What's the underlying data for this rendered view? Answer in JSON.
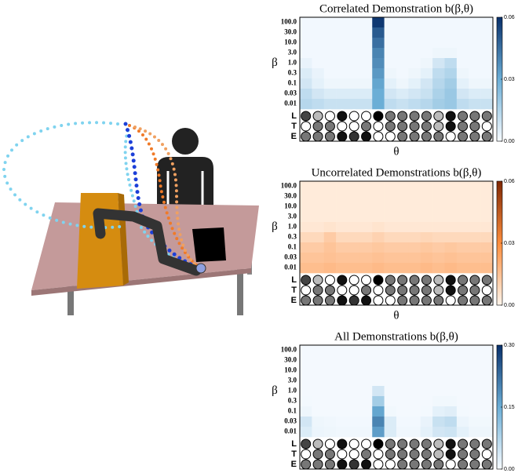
{
  "chart_data": [
    {
      "type": "heatmap",
      "title": "Correlated Demonstration b(β,θ)",
      "y_label": "β",
      "x_label": "θ",
      "y_categories": [
        "100.0",
        "30.0",
        "10.0",
        "3.0",
        "1.0",
        "0.3",
        "0.1",
        "0.03",
        "0.01"
      ],
      "values": [
        [
          0.001,
          0.001,
          0.001,
          0.001,
          0.001,
          0.001,
          0.058,
          0.001,
          0.001,
          0.001,
          0.001,
          0.001,
          0.001,
          0.001,
          0.001,
          0.001
        ],
        [
          0.001,
          0.001,
          0.001,
          0.001,
          0.001,
          0.001,
          0.05,
          0.001,
          0.001,
          0.001,
          0.001,
          0.001,
          0.001,
          0.001,
          0.001,
          0.001
        ],
        [
          0.001,
          0.001,
          0.001,
          0.001,
          0.001,
          0.001,
          0.045,
          0.001,
          0.001,
          0.001,
          0.001,
          0.001,
          0.001,
          0.001,
          0.001,
          0.001
        ],
        [
          0.001,
          0.001,
          0.001,
          0.001,
          0.001,
          0.001,
          0.04,
          0.001,
          0.001,
          0.001,
          0.001,
          0.002,
          0.002,
          0.001,
          0.001,
          0.001
        ],
        [
          0.003,
          0.001,
          0.001,
          0.001,
          0.001,
          0.001,
          0.038,
          0.001,
          0.001,
          0.001,
          0.002,
          0.008,
          0.012,
          0.001,
          0.001,
          0.001
        ],
        [
          0.006,
          0.003,
          0.001,
          0.001,
          0.001,
          0.001,
          0.035,
          0.002,
          0.001,
          0.002,
          0.004,
          0.012,
          0.015,
          0.002,
          0.001,
          0.001
        ],
        [
          0.008,
          0.004,
          0.002,
          0.002,
          0.002,
          0.002,
          0.032,
          0.004,
          0.002,
          0.004,
          0.008,
          0.014,
          0.018,
          0.004,
          0.002,
          0.002
        ],
        [
          0.012,
          0.008,
          0.006,
          0.006,
          0.006,
          0.006,
          0.03,
          0.008,
          0.006,
          0.008,
          0.01,
          0.016,
          0.02,
          0.008,
          0.006,
          0.006
        ],
        [
          0.014,
          0.012,
          0.01,
          0.01,
          0.01,
          0.01,
          0.03,
          0.012,
          0.01,
          0.012,
          0.014,
          0.018,
          0.02,
          0.012,
          0.01,
          0.01
        ]
      ],
      "colormap": [
        "#f7fbff",
        "#6baed6",
        "#08306b"
      ],
      "clim": [
        0,
        0.06
      ],
      "cticks": [
        {
          "value": 0,
          "label": "0.00"
        },
        {
          "value": 0.03,
          "label": "0.03"
        },
        {
          "value": 0.06,
          "label": "0.06"
        }
      ]
    },
    {
      "type": "heatmap",
      "title": "Uncorrelated Demonstrations b(β,θ)",
      "y_label": "β",
      "x_label": "θ",
      "y_categories": [
        "100.0",
        "30.0",
        "10.0",
        "3.0",
        "1.0",
        "0.3",
        "0.1",
        "0.03",
        "0.01"
      ],
      "values": [
        [
          0.003,
          0.003,
          0.003,
          0.003,
          0.003,
          0.003,
          0.003,
          0.003,
          0.003,
          0.003,
          0.003,
          0.003,
          0.003,
          0.003,
          0.003,
          0.003
        ],
        [
          0.003,
          0.003,
          0.003,
          0.003,
          0.003,
          0.003,
          0.003,
          0.003,
          0.003,
          0.003,
          0.003,
          0.003,
          0.003,
          0.003,
          0.003,
          0.003
        ],
        [
          0.003,
          0.003,
          0.003,
          0.003,
          0.003,
          0.003,
          0.003,
          0.003,
          0.003,
          0.003,
          0.003,
          0.003,
          0.003,
          0.003,
          0.003,
          0.003
        ],
        [
          0.003,
          0.003,
          0.003,
          0.003,
          0.003,
          0.003,
          0.003,
          0.003,
          0.003,
          0.003,
          0.003,
          0.003,
          0.003,
          0.003,
          0.003,
          0.003
        ],
        [
          0.004,
          0.004,
          0.005,
          0.004,
          0.004,
          0.004,
          0.005,
          0.004,
          0.004,
          0.004,
          0.004,
          0.004,
          0.004,
          0.004,
          0.004,
          0.004
        ],
        [
          0.008,
          0.008,
          0.012,
          0.008,
          0.008,
          0.008,
          0.01,
          0.008,
          0.008,
          0.008,
          0.009,
          0.008,
          0.008,
          0.008,
          0.008,
          0.008
        ],
        [
          0.012,
          0.012,
          0.014,
          0.012,
          0.012,
          0.012,
          0.013,
          0.012,
          0.012,
          0.012,
          0.013,
          0.012,
          0.013,
          0.012,
          0.012,
          0.012
        ],
        [
          0.014,
          0.014,
          0.015,
          0.014,
          0.014,
          0.014,
          0.015,
          0.014,
          0.014,
          0.014,
          0.015,
          0.014,
          0.015,
          0.014,
          0.014,
          0.014
        ],
        [
          0.016,
          0.016,
          0.017,
          0.016,
          0.016,
          0.016,
          0.017,
          0.016,
          0.016,
          0.016,
          0.017,
          0.016,
          0.017,
          0.016,
          0.016,
          0.016
        ]
      ],
      "colormap": [
        "#fff5eb",
        "#fd8d3c",
        "#7f2704"
      ],
      "clim": [
        0,
        0.06
      ],
      "cticks": [
        {
          "value": 0,
          "label": "0.00"
        },
        {
          "value": 0.03,
          "label": "0.03"
        },
        {
          "value": 0.06,
          "label": "0.06"
        }
      ]
    },
    {
      "type": "heatmap",
      "title": "All Demonstrations b(β,θ)",
      "y_label": "β",
      "x_label": "θ",
      "y_categories": [
        "100.0",
        "30.0",
        "10.0",
        "3.0",
        "1.0",
        "0.3",
        "0.1",
        "0.03",
        "0.01"
      ],
      "values": [
        [
          0.003,
          0.003,
          0.003,
          0.003,
          0.003,
          0.003,
          0.003,
          0.003,
          0.003,
          0.003,
          0.003,
          0.003,
          0.003,
          0.003,
          0.003,
          0.003
        ],
        [
          0.003,
          0.003,
          0.003,
          0.003,
          0.003,
          0.003,
          0.003,
          0.003,
          0.003,
          0.003,
          0.003,
          0.003,
          0.003,
          0.003,
          0.003,
          0.003
        ],
        [
          0.003,
          0.003,
          0.003,
          0.003,
          0.003,
          0.003,
          0.003,
          0.003,
          0.003,
          0.003,
          0.003,
          0.003,
          0.003,
          0.003,
          0.003,
          0.003
        ],
        [
          0.003,
          0.003,
          0.003,
          0.003,
          0.003,
          0.003,
          0.003,
          0.003,
          0.003,
          0.003,
          0.003,
          0.003,
          0.003,
          0.003,
          0.003,
          0.003
        ],
        [
          0.003,
          0.003,
          0.003,
          0.003,
          0.003,
          0.003,
          0.04,
          0.003,
          0.003,
          0.003,
          0.003,
          0.003,
          0.003,
          0.003,
          0.003,
          0.003
        ],
        [
          0.004,
          0.003,
          0.003,
          0.003,
          0.003,
          0.003,
          0.09,
          0.003,
          0.003,
          0.003,
          0.003,
          0.006,
          0.006,
          0.003,
          0.003,
          0.003
        ],
        [
          0.01,
          0.003,
          0.003,
          0.003,
          0.003,
          0.003,
          0.16,
          0.006,
          0.003,
          0.003,
          0.004,
          0.02,
          0.025,
          0.004,
          0.003,
          0.003
        ],
        [
          0.04,
          0.01,
          0.008,
          0.005,
          0.005,
          0.005,
          0.2,
          0.03,
          0.005,
          0.005,
          0.015,
          0.05,
          0.06,
          0.012,
          0.006,
          0.006
        ],
        [
          0.03,
          0.012,
          0.01,
          0.008,
          0.008,
          0.008,
          0.17,
          0.03,
          0.008,
          0.008,
          0.02,
          0.04,
          0.045,
          0.02,
          0.01,
          0.01
        ]
      ],
      "colormap": [
        "#f7fbff",
        "#6baed6",
        "#08306b"
      ],
      "clim": [
        0,
        0.3
      ],
      "cticks": [
        {
          "value": 0,
          "label": "0.00"
        },
        {
          "value": 0.15,
          "label": "0.15"
        },
        {
          "value": 0.3,
          "label": "0.30"
        }
      ]
    }
  ],
  "theta_features": [
    {
      "name": "L",
      "colors": [
        "#444",
        "#bbb",
        "#fff",
        "#111",
        "#fff",
        "#fff",
        "#000",
        "#777",
        "#777",
        "#777",
        "#777",
        "#bbb",
        "#111",
        "#777",
        "#777",
        "#777"
      ]
    },
    {
      "name": "T",
      "colors": [
        "#fff",
        "#777",
        "#777",
        "#fff",
        "#fff",
        "#777",
        "#fff",
        "#777",
        "#777",
        "#777",
        "#777",
        "#bbb",
        "#111",
        "#777",
        "#777",
        "#fff"
      ]
    },
    {
      "name": "E",
      "colors": [
        "#777",
        "#777",
        "#777",
        "#111",
        "#333",
        "#111",
        "#fff",
        "#fff",
        "#777",
        "#777",
        "#777",
        "#777",
        "#fff",
        "#777",
        "#777",
        "#777"
      ]
    }
  ]
}
